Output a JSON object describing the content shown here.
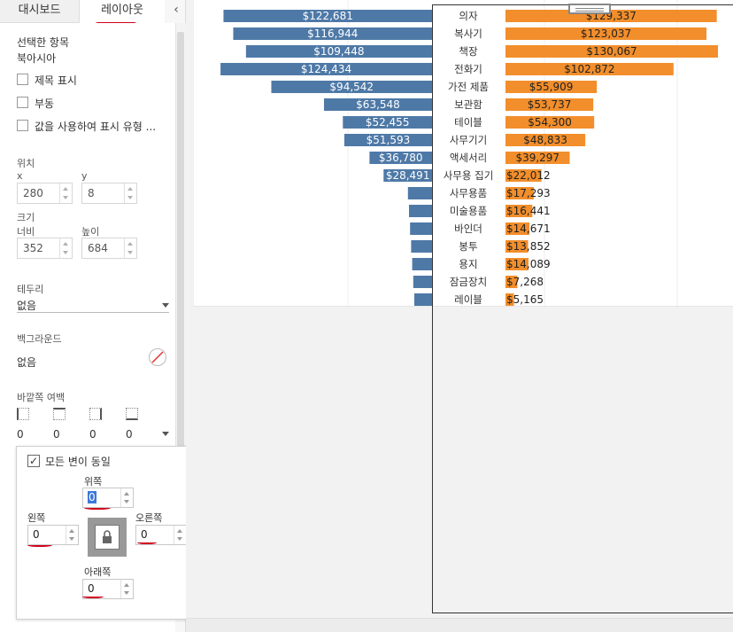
{
  "tabs": {
    "dashboard": "대시보드",
    "layout": "레이아웃"
  },
  "collapse_glyph": "‹",
  "panel": {
    "selected_item_label": "선택한 항목",
    "selected_item_value": "북아시아",
    "checkboxes": [
      {
        "label": "제목 표시",
        "checked": false
      },
      {
        "label": "부동",
        "checked": false
      },
      {
        "label": "값을 사용하여 표시 유형 ...",
        "checked": false
      }
    ],
    "position": {
      "label": "위치",
      "x_label": "x",
      "x_value": "280",
      "y_label": "y",
      "y_value": "8"
    },
    "size": {
      "label": "크기",
      "width_label": "너비",
      "width_value": "352",
      "height_label": "높이",
      "height_value": "684"
    },
    "border": {
      "label": "테두리",
      "value": "없음"
    },
    "background": {
      "label": "백그라운드",
      "value": "없음"
    },
    "outer_padding": {
      "label": "바깥쪽 여백",
      "values": [
        "0",
        "0",
        "0",
        "0"
      ]
    }
  },
  "padding_popup": {
    "same_all_label": "모든 변이 동일",
    "same_all_checked": true,
    "top_label": "위쪽",
    "top_value": "0",
    "left_label": "왼쪽",
    "left_value": "0",
    "right_label": "오른쪽",
    "right_value": "0",
    "bottom_label": "아래쪽",
    "bottom_value": "0"
  },
  "colors": {
    "left_bar": "#4e79a7",
    "right_bar": "#f28e2b",
    "annotation": "#d0021b"
  },
  "chart_data": {
    "type": "bar",
    "categories": [
      "의자",
      "복사기",
      "책장",
      "전화기",
      "가전 제품",
      "보관함",
      "테이블",
      "사무기기",
      "액세서리",
      "사무용 집기",
      "사무용품",
      "미술용품",
      "바인더",
      "봉투",
      "용지",
      "잠금장치",
      "레이블"
    ],
    "series": [
      {
        "values": [
          122681,
          116944,
          109448,
          124434,
          94542,
          63548,
          52455,
          51593,
          36780,
          28491,
          null,
          null,
          null,
          null,
          null,
          null,
          null
        ],
        "labels": [
          "$122,681",
          "$116,944",
          "$109,448",
          "$124,434",
          "$94,542",
          "$63,548",
          "$52,455",
          "$51,593",
          "$36,780",
          "$28,491",
          "",
          "",
          "",
          "",
          "",
          "",
          ""
        ]
      },
      {
        "values": [
          129337,
          123037,
          130067,
          102872,
          55909,
          53737,
          54300,
          48833,
          39297,
          22012,
          17293,
          16441,
          14671,
          13852,
          14089,
          7268,
          5165
        ],
        "labels": [
          "$129,337",
          "$123,037",
          "$130,067",
          "$102,872",
          "$55,909",
          "$53,737",
          "$54,300",
          "$48,833",
          "$39,297",
          "$22,012",
          "$17,293",
          "$16,441",
          "$14,671",
          "$13,852",
          "$14,089",
          "$7,268",
          "$5,165"
        ]
      }
    ]
  }
}
